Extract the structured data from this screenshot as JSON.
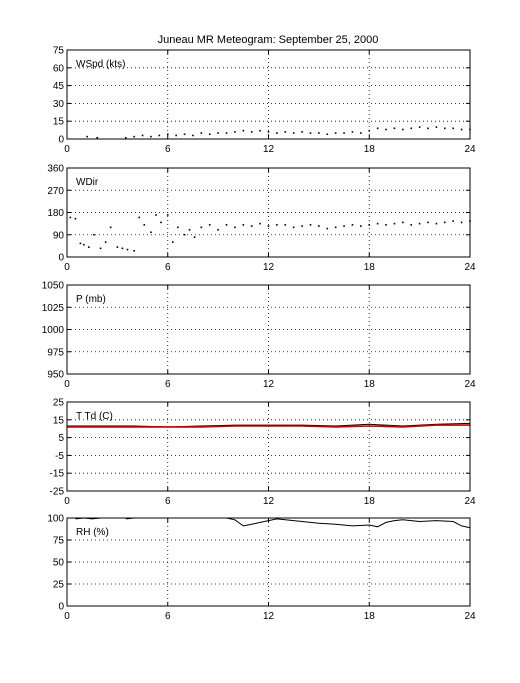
{
  "title": "Juneau MR Meteogram: September 25, 2000",
  "colors": {
    "frame": "#000000",
    "grid": "#000000",
    "trace": "#000000",
    "dewpoint": "#cc0000",
    "background": "#ffffff"
  },
  "chart_data": [
    {
      "type": "scatter",
      "label": "WSpd (kts)",
      "xlim": [
        0,
        24
      ],
      "ylim": [
        0,
        75
      ],
      "xticks": [
        0,
        6,
        12,
        18,
        24
      ],
      "yticks": [
        0,
        15,
        30,
        45,
        60,
        75
      ],
      "grid": true,
      "series": [
        {
          "style": "dots",
          "color": "#000000",
          "x": [
            1.2,
            1.8,
            3.5,
            4.0,
            4.5,
            5.0,
            5.5,
            6.0,
            6.5,
            7.0,
            7.5,
            8.0,
            8.5,
            9.0,
            9.5,
            10.0,
            10.5,
            11.0,
            11.5,
            12.0,
            12.5,
            13.0,
            13.5,
            14.0,
            14.5,
            15.0,
            15.5,
            16.0,
            16.5,
            17.0,
            17.5,
            18.0,
            18.5,
            19.0,
            19.5,
            20.0,
            20.5,
            21.0,
            21.5,
            22.0,
            22.5,
            23.0,
            23.5,
            24.0
          ],
          "y": [
            2,
            1,
            1,
            2,
            3,
            2,
            3,
            4,
            3,
            4,
            3,
            5,
            4,
            5,
            5,
            6,
            7,
            6,
            7,
            6,
            5,
            6,
            5,
            6,
            5,
            5,
            4,
            5,
            5,
            6,
            5,
            7,
            9,
            8,
            9,
            8,
            9,
            10,
            9,
            10,
            9,
            9,
            8,
            8
          ]
        }
      ]
    },
    {
      "type": "scatter",
      "label": "WDir",
      "xlim": [
        0,
        24
      ],
      "ylim": [
        0,
        360
      ],
      "xticks": [
        0,
        6,
        12,
        18,
        24
      ],
      "yticks": [
        0,
        90,
        180,
        270,
        360
      ],
      "grid": true,
      "series": [
        {
          "style": "dots",
          "color": "#000000",
          "x": [
            0.2,
            0.5,
            0.8,
            1.0,
            1.3,
            1.6,
            2.0,
            2.3,
            2.6,
            3.0,
            3.3,
            3.6,
            4.0,
            4.3,
            4.6,
            5.0,
            5.3,
            5.6,
            6.0,
            6.3,
            6.6,
            7.0,
            7.3,
            7.6,
            8.0,
            8.5,
            9.0,
            9.5,
            10.0,
            10.5,
            11.0,
            11.5,
            12.0,
            12.5,
            13.0,
            13.5,
            14.0,
            14.5,
            15.0,
            15.5,
            16.0,
            16.5,
            17.0,
            17.5,
            18.0,
            18.5,
            19.0,
            19.5,
            20.0,
            20.5,
            21.0,
            21.5,
            22.0,
            22.5,
            23.0,
            23.5,
            24.0
          ],
          "y": [
            160,
            155,
            55,
            50,
            40,
            90,
            35,
            60,
            120,
            40,
            35,
            30,
            25,
            160,
            130,
            100,
            170,
            140,
            170,
            60,
            120,
            90,
            110,
            80,
            120,
            130,
            110,
            130,
            120,
            130,
            125,
            135,
            125,
            130,
            130,
            120,
            125,
            130,
            125,
            115,
            120,
            125,
            130,
            125,
            130,
            135,
            130,
            135,
            140,
            130,
            135,
            140,
            135,
            140,
            145,
            140,
            145
          ]
        }
      ]
    },
    {
      "type": "line",
      "label": "P (mb)",
      "xlim": [
        0,
        24
      ],
      "ylim": [
        950,
        1050
      ],
      "xticks": [
        0,
        6,
        12,
        18,
        24
      ],
      "yticks": [
        950,
        975,
        1000,
        1025,
        1050
      ],
      "grid": true,
      "series": []
    },
    {
      "type": "line",
      "label": "T Td (C)",
      "xlim": [
        0,
        24
      ],
      "ylim": [
        -25,
        25
      ],
      "xticks": [
        0,
        6,
        12,
        18,
        24
      ],
      "yticks": [
        -25,
        -15,
        -5,
        5,
        15,
        25
      ],
      "grid": true,
      "series": [
        {
          "style": "line",
          "color": "#000000",
          "x": [
            0,
            2,
            4,
            6,
            8,
            10,
            12,
            14,
            16,
            18,
            20,
            22,
            24
          ],
          "y": [
            11.5,
            11.5,
            11.5,
            11,
            11.5,
            12,
            12,
            12,
            11.5,
            12.5,
            11.5,
            12.5,
            13
          ]
        },
        {
          "style": "line",
          "color": "#cc0000",
          "x": [
            0,
            2,
            4,
            6,
            8,
            10,
            12,
            14,
            16,
            18,
            20,
            22,
            24
          ],
          "y": [
            11,
            11,
            11,
            11,
            11,
            11.5,
            11.5,
            11.5,
            11,
            11.5,
            11,
            12,
            12
          ]
        }
      ]
    },
    {
      "type": "line",
      "label": "RH (%)",
      "xlim": [
        0,
        24
      ],
      "ylim": [
        0,
        100
      ],
      "xticks": [
        0,
        6,
        12,
        18,
        24
      ],
      "yticks": [
        0,
        25,
        50,
        75,
        100
      ],
      "grid": true,
      "series": [
        {
          "style": "segments",
          "color": "#000000",
          "segments": [
            {
              "x": [
                0.5,
                1.0,
                1.5,
                2.0
              ],
              "y": [
                99,
                100,
                99,
                100
              ]
            },
            {
              "x": [
                3.5,
                4.0
              ],
              "y": [
                99,
                100
              ]
            },
            {
              "x": [
                9.5,
                10.0,
                10.5,
                11.0,
                11.5,
                12.0,
                12.5,
                13.0,
                14.0,
                15.0,
                16.0,
                17.0,
                18.0,
                18.5,
                19.0,
                19.5,
                20.0,
                20.5,
                21.0,
                22.0,
                23.0,
                23.5,
                24.0
              ],
              "y": [
                100,
                98,
                91,
                93,
                95,
                97,
                99,
                98,
                96,
                94,
                93,
                91,
                92,
                90,
                95,
                97,
                98,
                97,
                96,
                97,
                96,
                91,
                89
              ]
            }
          ]
        }
      ]
    }
  ]
}
